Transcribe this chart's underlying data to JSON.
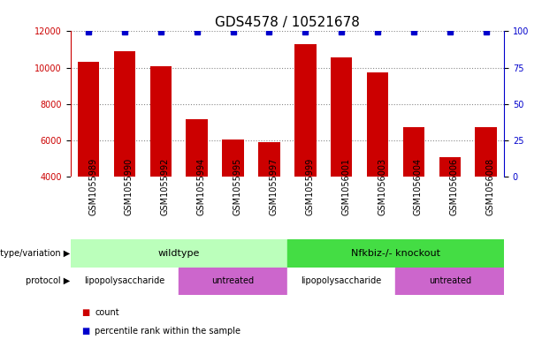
{
  "title": "GDS4578 / 10521678",
  "samples": [
    "GSM1055989",
    "GSM1055990",
    "GSM1055992",
    "GSM1055994",
    "GSM1055995",
    "GSM1055997",
    "GSM1055999",
    "GSM1056001",
    "GSM1056003",
    "GSM1056004",
    "GSM1056006",
    "GSM1056008"
  ],
  "counts": [
    10300,
    10900,
    10100,
    7150,
    6050,
    5900,
    11300,
    10550,
    9750,
    6750,
    5100,
    6750
  ],
  "ylim_left": [
    4000,
    12000
  ],
  "ylim_right": [
    0,
    100
  ],
  "yticks_left": [
    4000,
    6000,
    8000,
    10000,
    12000
  ],
  "yticks_right": [
    0,
    25,
    50,
    75,
    100
  ],
  "bar_color": "#cc0000",
  "dot_color": "#0000cc",
  "grid_color": "#888888",
  "xticklabel_bg": "#cccccc",
  "plot_bg": "#ffffff",
  "genotype_groups": [
    {
      "label": "wildtype",
      "start": 0,
      "end": 6,
      "color": "#bbffbb"
    },
    {
      "label": "Nfkbiz-/- knockout",
      "start": 6,
      "end": 12,
      "color": "#44dd44"
    }
  ],
  "protocol_groups": [
    {
      "label": "lipopolysaccharide",
      "start": 0,
      "end": 3,
      "color": "#ffffff"
    },
    {
      "label": "untreated",
      "start": 3,
      "end": 6,
      "color": "#cc66cc"
    },
    {
      "label": "lipopolysaccharide",
      "start": 6,
      "end": 9,
      "color": "#ffffff"
    },
    {
      "label": "untreated",
      "start": 9,
      "end": 12,
      "color": "#cc66cc"
    }
  ],
  "legend_items": [
    {
      "label": "count",
      "color": "#cc0000"
    },
    {
      "label": "percentile rank within the sample",
      "color": "#0000cc"
    }
  ],
  "genotype_label": "genotype/variation",
  "protocol_label": "protocol",
  "right_axis_color": "#0000cc",
  "left_axis_color": "#cc0000",
  "title_fontsize": 11,
  "tick_fontsize": 7,
  "label_fontsize": 8
}
